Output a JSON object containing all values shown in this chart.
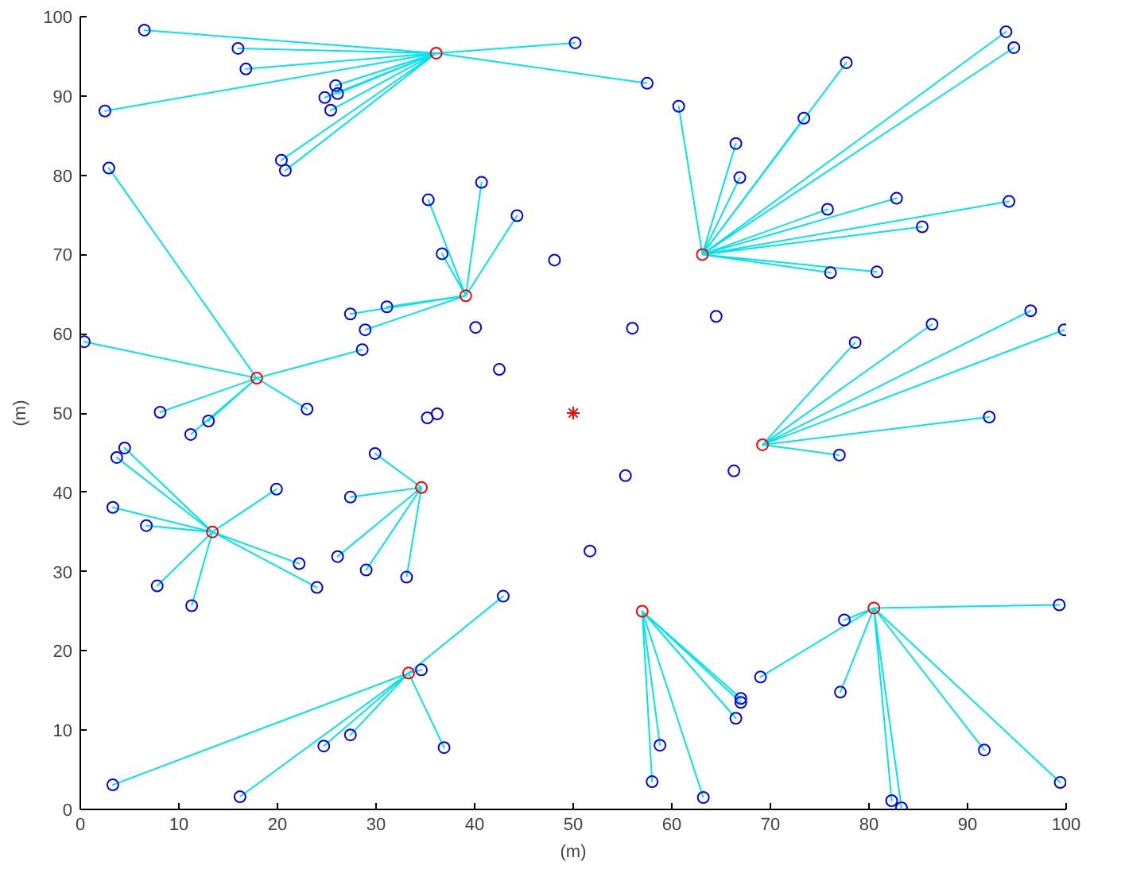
{
  "chart_data": {
    "type": "scatter",
    "xlabel": "(m)",
    "ylabel": "(m)",
    "xlim": [
      0,
      100
    ],
    "ylim": [
      0,
      100
    ],
    "xticks": [
      0,
      10,
      20,
      30,
      40,
      50,
      60,
      70,
      80,
      90,
      100
    ],
    "yticks": [
      0,
      10,
      20,
      30,
      40,
      50,
      60,
      70,
      80,
      90,
      100
    ],
    "grid": false,
    "series": [
      {
        "type": "line",
        "color": "#00e5ee",
        "marker": "none",
        "x": [
          36.1,
          6.5,
          36.1,
          16.0,
          36.1,
          16.8,
          36.1,
          2.5,
          36.1,
          25.9,
          36.1,
          26.1,
          36.1,
          24.8,
          36.1,
          25.4,
          36.1,
          20.4,
          36.1,
          20.8,
          36.1,
          50.2,
          36.1,
          57.5
        ],
        "values": [
          95.4,
          98.3,
          95.4,
          96.0,
          95.4,
          93.4,
          95.4,
          88.1,
          95.4,
          91.3,
          95.4,
          90.3,
          95.4,
          89.8,
          95.4,
          88.2,
          95.4,
          81.9,
          95.4,
          80.6,
          95.4,
          96.7,
          95.4,
          91.6
        ]
      },
      {
        "type": "line",
        "color": "#00e5ee",
        "marker": "none",
        "x": [
          63.1,
          60.7,
          63.1,
          66.5,
          63.1,
          66.9,
          63.1,
          73.4,
          63.1,
          77.7,
          63.1,
          93.9,
          63.1,
          94.7,
          63.1,
          75.8,
          63.1,
          82.8,
          63.1,
          94.2,
          63.1,
          85.4,
          63.1,
          76.1,
          63.1,
          80.8
        ],
        "values": [
          70,
          88.7,
          70,
          84,
          70,
          79.7,
          70,
          87.2,
          70,
          94.2,
          70,
          98.1,
          70,
          96.1,
          70,
          75.7,
          70,
          77.1,
          70,
          76.7,
          70,
          73.5,
          70,
          67.7,
          70,
          67.8
        ]
      },
      {
        "type": "line",
        "color": "#00e5ee",
        "marker": "none",
        "x": [
          39.1,
          35.3,
          39.1,
          40.7,
          39.1,
          44.3,
          39.1,
          36.7,
          39.1,
          31.1,
          39.1,
          27.4,
          39.1,
          28.9
        ],
        "values": [
          64.8,
          76.9,
          64.8,
          79.1,
          64.8,
          74.9,
          64.8,
          70.1,
          64.8,
          63.4,
          64.8,
          62.5,
          64.8,
          60.5
        ]
      },
      {
        "type": "line",
        "color": "#00e5ee",
        "marker": "none",
        "x": [
          17.9,
          2.9,
          17.9,
          0.4,
          17.9,
          28.6,
          17.9,
          23,
          17.9,
          8.1,
          17.9,
          13,
          17.9,
          11.2
        ],
        "values": [
          54.4,
          80.9,
          54.4,
          59,
          54.4,
          58,
          54.4,
          50.5,
          54.4,
          50.1,
          54.4,
          49,
          54.4,
          47.3
        ]
      },
      {
        "type": "line",
        "color": "#00e5ee",
        "marker": "none",
        "x": [
          69.2,
          78.6,
          69.2,
          86.4,
          69.2,
          96.4,
          69.2,
          99.8,
          69.2,
          92.2,
          69.2,
          77
        ],
        "values": [
          46,
          58.9,
          46,
          61.2,
          46,
          62.9,
          46,
          60.5,
          46,
          49.5,
          46,
          44.7
        ]
      },
      {
        "type": "line",
        "color": "#00e5ee",
        "marker": "none",
        "x": [
          34.6,
          29.9,
          34.6,
          27.4,
          34.6,
          26.1,
          34.6,
          29,
          34.6,
          33.1
        ],
        "values": [
          40.6,
          44.9,
          40.6,
          39.4,
          40.6,
          31.9,
          40.6,
          30.2,
          40.6,
          29.3
        ]
      },
      {
        "type": "line",
        "color": "#00e5ee",
        "marker": "none",
        "x": [
          13.4,
          4.5,
          13.4,
          3.7,
          13.4,
          19.9,
          13.4,
          3.3,
          13.4,
          6.7,
          13.4,
          22.2,
          13.4,
          24,
          13.4,
          7.8,
          13.4,
          11.3
        ],
        "values": [
          35,
          45.6,
          35,
          44.4,
          35,
          40.4,
          35,
          38.1,
          35,
          35.8,
          35,
          31,
          35,
          28,
          35,
          28.2,
          35,
          25.7
        ]
      },
      {
        "type": "line",
        "color": "#00e5ee",
        "marker": "none",
        "x": [
          33.3,
          42.9,
          33.3,
          34.6,
          33.3,
          27.4,
          33.3,
          24.7,
          33.3,
          36.9,
          33.3,
          3.3,
          33.3,
          16.2
        ],
        "values": [
          17.2,
          26.9,
          17.2,
          17.6,
          17.2,
          9.4,
          17.2,
          8,
          17.2,
          7.8,
          17.2,
          3.1,
          17.2,
          1.6
        ]
      },
      {
        "type": "line",
        "color": "#00e5ee",
        "marker": "none",
        "x": [
          57,
          67,
          57,
          67,
          57,
          66.5,
          57,
          58.8,
          57,
          58,
          57,
          63.2
        ],
        "values": [
          25,
          14,
          25,
          13.5,
          25,
          11.5,
          25,
          8.1,
          25,
          3.5,
          25,
          1.5
        ]
      },
      {
        "type": "line",
        "color": "#00e5ee",
        "marker": "none",
        "x": [
          80.5,
          99.3,
          80.5,
          77.5,
          80.5,
          69,
          80.5,
          77.1,
          80.5,
          91.7,
          80.5,
          99.4,
          80.5,
          82.3,
          80.5,
          83.3
        ],
        "values": [
          25.4,
          25.8,
          25.4,
          23.9,
          25.4,
          16.7,
          25.4,
          14.8,
          25.4,
          7.5,
          25.4,
          3.4,
          25.4,
          1.1,
          25.4,
          0.2
        ]
      },
      {
        "color": "#0000ff",
        "marker": "circle",
        "x": [
          6.5,
          16.0,
          16.8,
          2.5,
          25.9,
          26.1,
          24.8,
          25.4,
          20.4,
          20.8,
          50.2,
          57.5,
          60.7,
          66.5,
          66.9,
          73.4,
          77.7,
          93.9,
          94.7,
          75.8,
          82.8,
          94.2,
          85.4,
          76.1,
          80.8,
          35.3,
          40.7,
          44.3,
          36.7,
          31.1,
          27.4,
          28.9,
          2.9,
          0.4,
          28.6,
          23,
          8.1,
          13,
          11.2,
          78.6,
          86.4,
          96.4,
          99.8,
          92.2,
          77,
          29.9,
          27.4,
          26.1,
          29,
          33.1,
          4.5,
          3.7,
          19.9,
          3.3,
          6.7,
          22.2,
          24,
          7.8,
          11.3,
          42.9,
          34.6,
          27.4,
          24.7,
          36.9,
          3.3,
          16.2,
          67,
          67,
          66.5,
          58.8,
          58,
          63.2,
          99.3,
          77.5,
          69,
          77.1,
          91.7,
          99.4,
          82.3,
          83.3,
          56,
          64.5,
          48.1,
          42.5,
          40.1,
          35.2,
          36.2,
          55.3,
          66.3,
          51.7
        ],
        "values": [
          98.3,
          96.0,
          93.4,
          88.1,
          91.3,
          90.3,
          89.8,
          88.2,
          81.9,
          80.6,
          96.7,
          91.6,
          88.7,
          84,
          79.7,
          87.2,
          94.2,
          98.1,
          96.1,
          75.7,
          77.1,
          76.7,
          73.5,
          67.7,
          67.8,
          76.9,
          79.1,
          74.9,
          70.1,
          63.4,
          62.5,
          60.5,
          80.9,
          59,
          58,
          50.5,
          50.1,
          49,
          47.3,
          58.9,
          61.2,
          62.9,
          60.5,
          49.5,
          44.7,
          44.9,
          39.4,
          31.9,
          30.2,
          29.3,
          45.6,
          44.4,
          40.4,
          38.1,
          35.8,
          31,
          28,
          28.2,
          25.7,
          26.9,
          17.6,
          9.4,
          8,
          7.8,
          3.1,
          1.6,
          14,
          13.5,
          11.5,
          8.1,
          3.5,
          1.5,
          25.8,
          23.9,
          16.7,
          14.8,
          7.5,
          3.4,
          1.1,
          0.2,
          60.7,
          62.2,
          69.3,
          55.5,
          60.8,
          49.4,
          49.9,
          42.1,
          42.7,
          32.6
        ]
      },
      {
        "color": "#ff0000",
        "marker": "circle",
        "x": [
          36.1,
          63.1,
          39.1,
          17.9,
          69.2,
          34.6,
          13.4,
          33.3,
          57,
          80.5
        ],
        "values": [
          95.4,
          70,
          64.8,
          54.4,
          46,
          40.6,
          35,
          17.2,
          25,
          25.4
        ]
      },
      {
        "color": "#ff0000",
        "marker": "cross",
        "x": [
          50
        ],
        "values": [
          50
        ]
      }
    ]
  }
}
